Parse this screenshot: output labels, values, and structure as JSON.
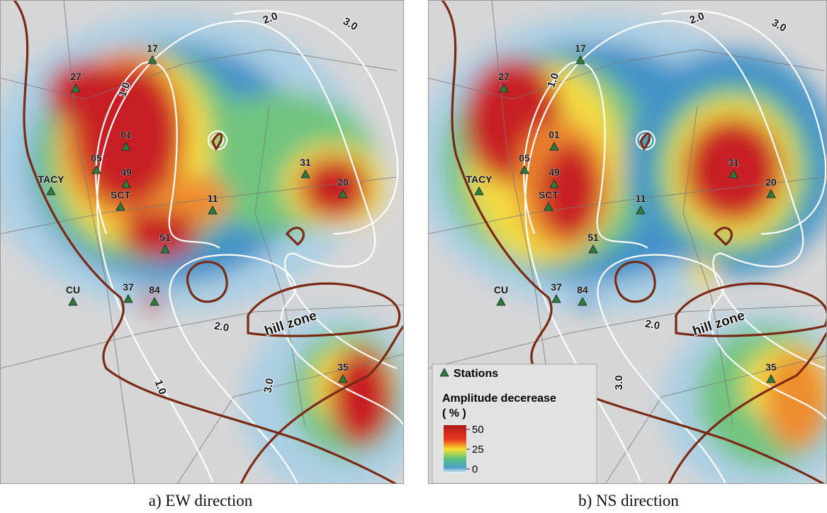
{
  "panels": [
    {
      "caption": "a) EW direction",
      "stations": [
        "17",
        "27",
        "01",
        "05",
        "49",
        "TACY",
        "SCT",
        "11",
        "51",
        "31",
        "20",
        "CU",
        "37",
        "84",
        "35"
      ],
      "contour_labels": [
        "1.0",
        "2.0",
        "3.0",
        "2.0",
        "3.0",
        "1.0"
      ],
      "zone_label": "hill zone"
    },
    {
      "caption": "b) NS direction",
      "stations": [
        "17",
        "27",
        "01",
        "05",
        "49",
        "TACY",
        "SCT",
        "11",
        "51",
        "31",
        "20",
        "CU",
        "37",
        "84",
        "35"
      ],
      "contour_labels": [
        "1.0",
        "2.0",
        "3.0",
        "2.0",
        "3.0"
      ],
      "zone_label": "hill zone"
    }
  ],
  "legend": {
    "stations_label": "Stations",
    "title": "Amplitude decerease",
    "unit": "( % )",
    "ticks": [
      50,
      25,
      0
    ]
  }
}
